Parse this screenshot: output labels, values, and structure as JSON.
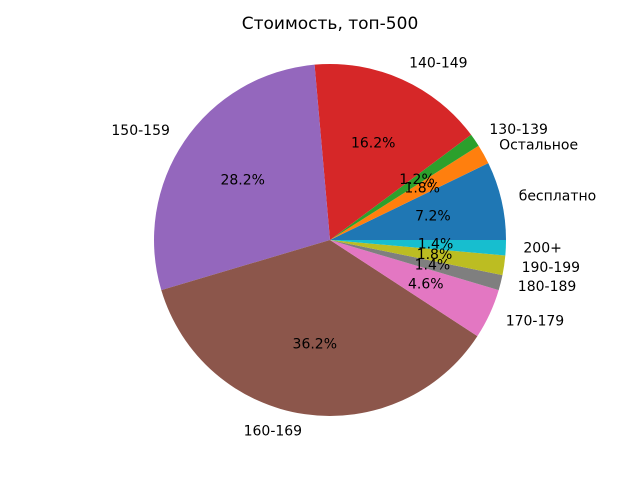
{
  "chart_data": {
    "type": "pie",
    "title": "Стоимость, топ-500",
    "labels": [
      "бесплатно",
      "Остальное",
      "130-139",
      "140-149",
      "150-159",
      "160-169",
      "170-179",
      "180-189",
      "190-199",
      "200+"
    ],
    "values": [
      7.2,
      1.8,
      1.2,
      16.2,
      28.2,
      36.2,
      4.6,
      1.4,
      1.8,
      1.4
    ],
    "pct_labels": [
      "7.2%",
      "1.8%",
      "1.2%",
      "16.2%",
      "28.2%",
      "36.2%",
      "4.6%",
      "1.4%",
      "1.8%",
      "1.4%"
    ],
    "colors": [
      "#1f77b4",
      "#ff7f0e",
      "#2ca02c",
      "#d62728",
      "#9467bd",
      "#8c564b",
      "#e377c2",
      "#7f7f7f",
      "#bcbd22",
      "#17becf"
    ],
    "start_angle": 0,
    "counterclockwise": true,
    "legend": "none",
    "grid": "off",
    "text_color": "#000000",
    "background_color": "#ffffff"
  }
}
